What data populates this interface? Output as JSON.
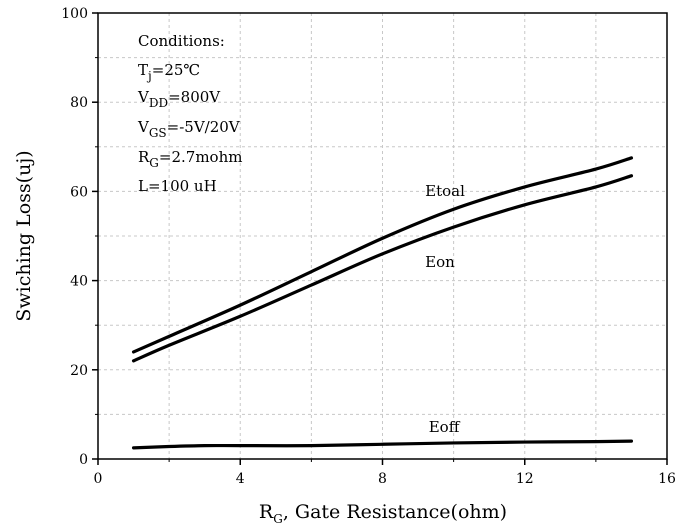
{
  "chart_data": {
    "type": "line",
    "xlabel_main": "R",
    "xlabel_sub": "G",
    "xlabel_rest": ", Gate Resistance(ohm)",
    "ylabel": "Swiching Loss(uj)",
    "xlim": [
      0,
      16
    ],
    "ylim": [
      0,
      100
    ],
    "xticks": [
      0,
      4,
      8,
      12,
      16
    ],
    "yticks": [
      0,
      20,
      40,
      60,
      80,
      100
    ],
    "grid": true,
    "conditions": {
      "title": "Conditions:",
      "tj": {
        "main": "T",
        "sub": "j",
        "rest": "=25℃"
      },
      "vdd": {
        "main": "V",
        "sub": "DD",
        "rest": "=800V"
      },
      "vgs": {
        "main": "V",
        "sub": "GS",
        "rest": "=-5V/20V"
      },
      "rg": {
        "main": "R",
        "sub": "G",
        "rest": "=2.7mohm"
      },
      "l": "L=100 uH"
    },
    "series": [
      {
        "name": "Etoal",
        "label_at": [
          9.2,
          59
        ],
        "x": [
          1,
          2,
          4,
          6,
          8,
          10,
          12,
          14,
          15
        ],
        "y": [
          24,
          27.5,
          34.5,
          42,
          49.5,
          56,
          61,
          65,
          67.5
        ]
      },
      {
        "name": "Eon",
        "label_at": [
          9.2,
          43
        ],
        "x": [
          1,
          2,
          4,
          6,
          8,
          10,
          12,
          14,
          15
        ],
        "y": [
          22,
          25.5,
          32,
          39,
          46,
          52,
          57,
          61,
          63.5
        ]
      },
      {
        "name": "Eoff",
        "label_at": [
          9.3,
          6
        ],
        "x": [
          1,
          2,
          3,
          4,
          6,
          8,
          10,
          12,
          14,
          15
        ],
        "y": [
          2.5,
          2.8,
          3.0,
          3.0,
          3.0,
          3.3,
          3.6,
          3.8,
          3.9,
          4.0
        ]
      }
    ]
  }
}
